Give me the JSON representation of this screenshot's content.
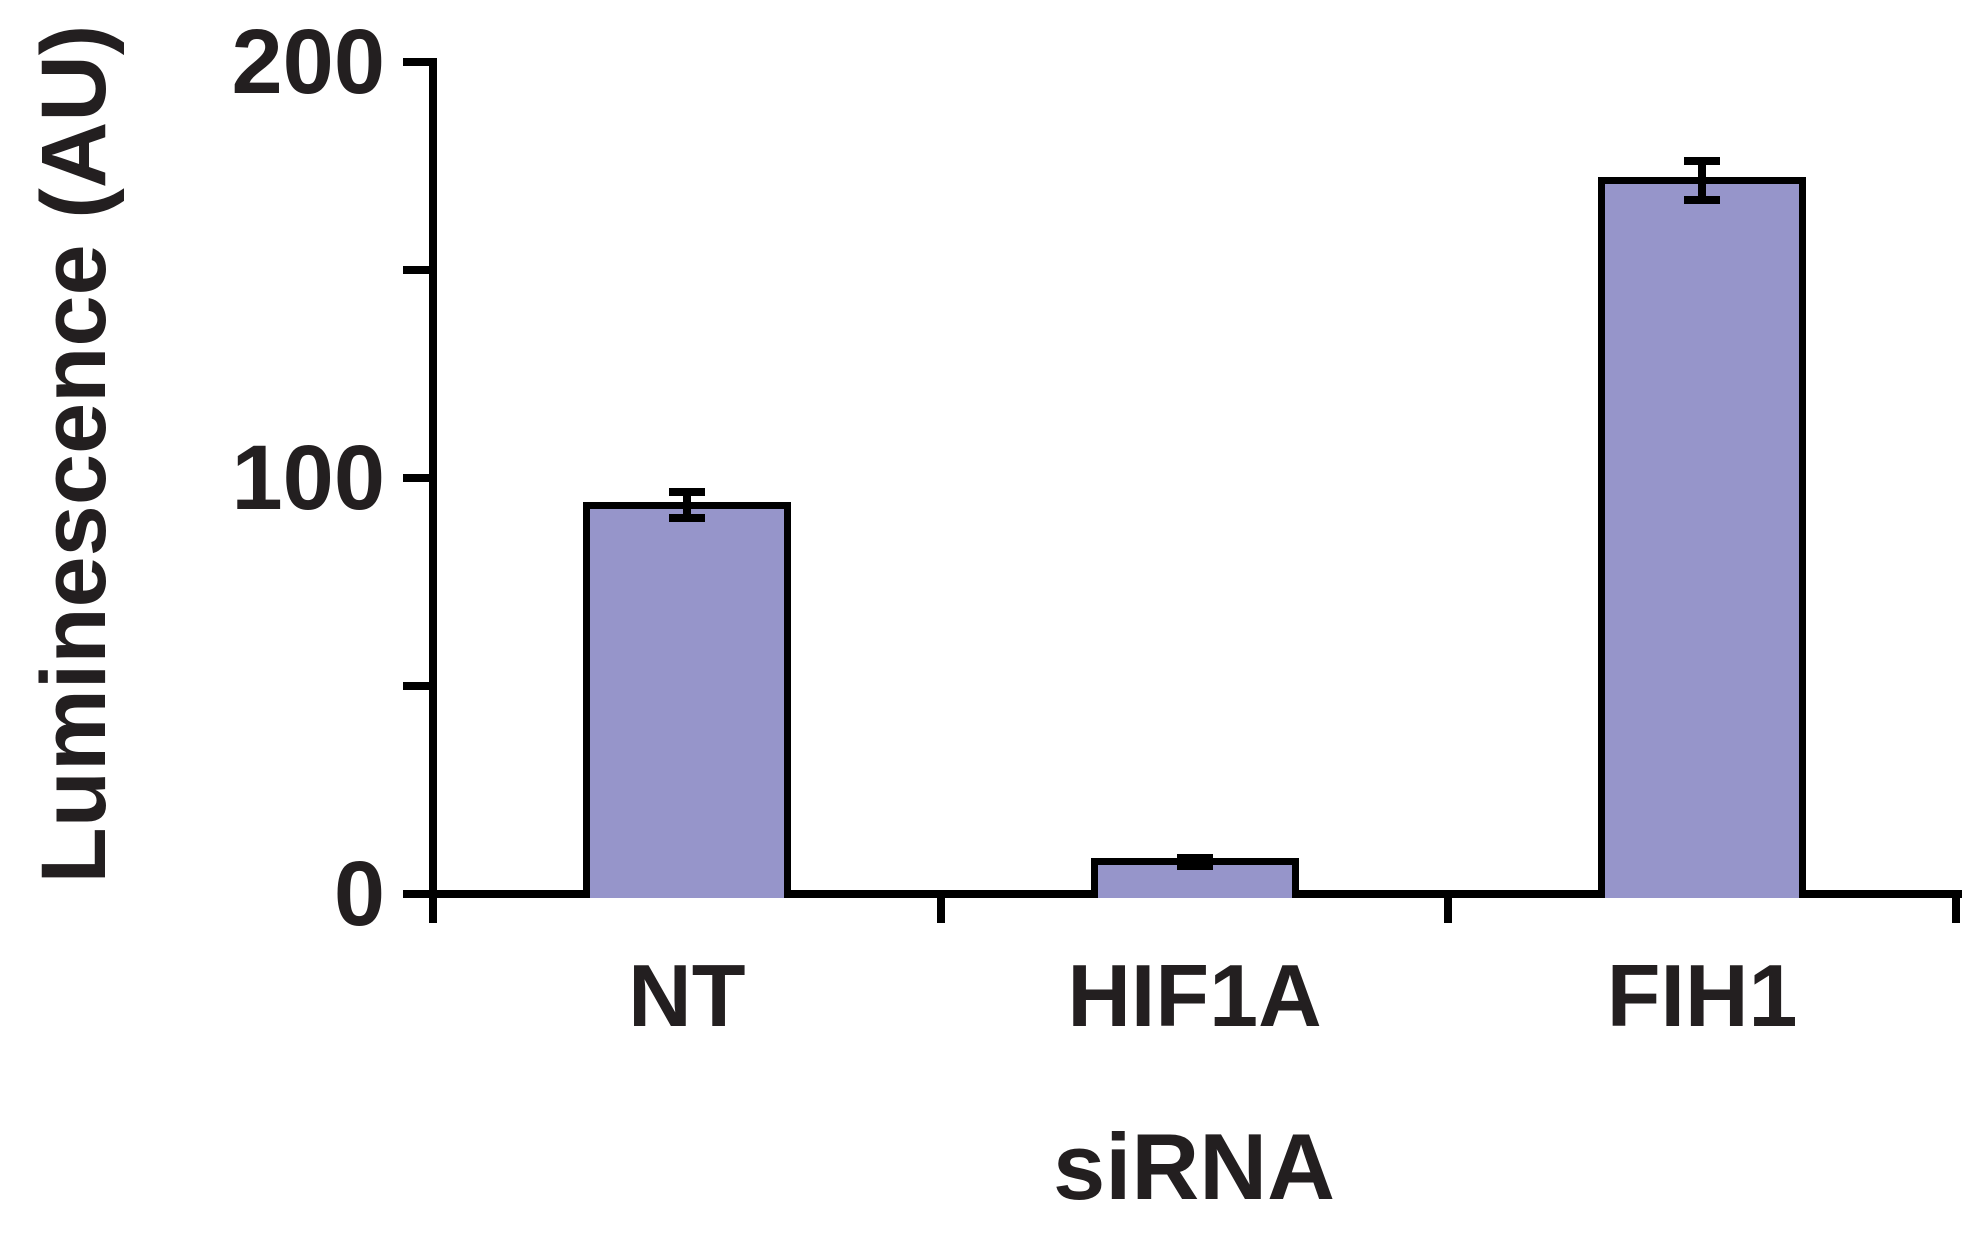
{
  "figure": {
    "background": "#ffffff",
    "text_color": "#231f20"
  },
  "chart_data": {
    "type": "bar",
    "title": "",
    "xlabel": "siRNA",
    "ylabel": "Luminescence (AU)",
    "categories": [
      "NT",
      "HIF1A",
      "FIH1"
    ],
    "series": [
      {
        "name": "Luminescence (AU)",
        "values": [
          93.5,
          7.7,
          171.5
        ],
        "errors": [
          3.2,
          1.0,
          4.6
        ]
      }
    ],
    "ylim": [
      0,
      200
    ],
    "yticks": [
      0,
      50,
      100,
      150,
      200
    ],
    "labeled_yticks": [
      0,
      100,
      200
    ],
    "ytick_labels": [
      "0",
      "100",
      "200"
    ],
    "grid": false,
    "legend": "none",
    "bar_fill": "#9695ca",
    "bar_edge": "#000000",
    "axis_color": "#000000",
    "error_bar_color": "#000000"
  }
}
